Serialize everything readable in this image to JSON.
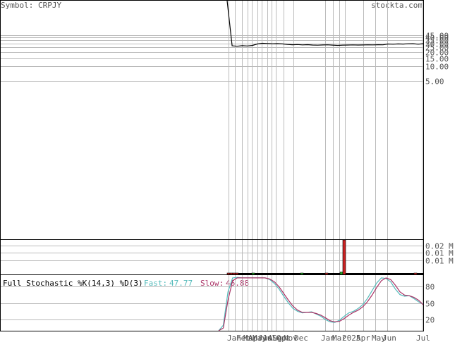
{
  "header": {
    "symbol_label": "Symbol: CRPJY",
    "site": "stockta.com"
  },
  "colors": {
    "grid": "#bbbbbb",
    "frame": "#000000",
    "price_line": "#000000",
    "vol_up": "#22aa22",
    "vol_down": "#cc2222",
    "fast": "#55bbbb",
    "slow": "#aa3366"
  },
  "chart_data": [
    {
      "type": "line",
      "panel": "price",
      "scale": "log",
      "y_ticks": [
        "45.00",
        "40.00",
        "35.00",
        "30.00",
        "25.00",
        "20.00",
        "15.00",
        "10.00",
        "5.00"
      ],
      "y_tick_values": [
        45,
        40,
        35,
        30,
        25,
        20,
        15,
        10,
        5
      ],
      "x_labels": [
        "Jan",
        "Feb",
        "Mar",
        "Apr",
        "May",
        "Jun",
        "Jul",
        "Aug",
        "Sep",
        "Oct",
        "Nov",
        "Dec",
        "Jan",
        "Mar",
        "2025",
        "Apr",
        "May",
        "Jun",
        "Jul"
      ],
      "series": [
        {
          "values": [
            300,
            27.0,
            26.5,
            27.2,
            26.8,
            27.5,
            29.5,
            30.5,
            30.2,
            29.8,
            30.0,
            29.6,
            28.9,
            28.4,
            28.7,
            28.2,
            28.5,
            28.0,
            27.8,
            28.1,
            28.3,
            27.9,
            27.6,
            27.9,
            28.0,
            28.2,
            28.0,
            28.1,
            28.3,
            28.2,
            28.4,
            28.3,
            29.5,
            29.2,
            29.6,
            29.4,
            29.8,
            29.9,
            29.2,
            29.9
          ]
        }
      ]
    },
    {
      "type": "bar",
      "panel": "volume",
      "y_ticks": [
        "0.02 M",
        "0.01 M",
        "0.01 M"
      ],
      "y_tick_values": [
        0.02,
        0.015,
        0.01
      ],
      "ylim": [
        0,
        0.024
      ],
      "bars": [
        {
          "x": 322,
          "v": 0.0006,
          "up": false
        },
        {
          "x": 326,
          "v": 0.0006,
          "up": false
        },
        {
          "x": 330,
          "v": 0.0006,
          "up": false
        },
        {
          "x": 334,
          "v": 0.0006,
          "up": false
        },
        {
          "x": 357,
          "v": 0.0005,
          "up": true
        },
        {
          "x": 426,
          "v": 0.0006,
          "up": true
        },
        {
          "x": 461,
          "v": 0.0009,
          "up": false
        },
        {
          "x": 482,
          "v": 0.0017,
          "up": true
        },
        {
          "x": 486,
          "v": 0.0285,
          "up": false
        },
        {
          "x": 587,
          "v": 0.0004,
          "up": false
        }
      ]
    },
    {
      "type": "line",
      "panel": "stochastic",
      "title": "Full Stochastic %K(14,3) %D(3)",
      "fast_label": "Fast:",
      "fast_value": "47.77",
      "slow_label": "Slow:",
      "slow_value": "46.88",
      "y_ticks": [
        "80",
        "50",
        "20"
      ],
      "y_tick_values": [
        80,
        50,
        20
      ],
      "ylim": [
        0,
        100
      ],
      "series": [
        {
          "name": "Fast",
          "values": [
            -5,
            10,
            70,
            95,
            96,
            95,
            95,
            95,
            95,
            95,
            95,
            92,
            85,
            75,
            62,
            50,
            40,
            35,
            32,
            33,
            34,
            30,
            26,
            20,
            16,
            15,
            19,
            26,
            32,
            35,
            40,
            47,
            58,
            72,
            86,
            95,
            94,
            88,
            75,
            65,
            62,
            63,
            58,
            52,
            48
          ]
        },
        {
          "name": "Slow",
          "values": [
            -5,
            5,
            55,
            90,
            95,
            95,
            95,
            95,
            95,
            95,
            95,
            93,
            88,
            79,
            67,
            55,
            44,
            37,
            33,
            33,
            33,
            31,
            28,
            23,
            18,
            16,
            17,
            22,
            28,
            33,
            37,
            43,
            52,
            64,
            78,
            90,
            95,
            92,
            82,
            70,
            64,
            63,
            60,
            55,
            47
          ]
        }
      ]
    }
  ]
}
